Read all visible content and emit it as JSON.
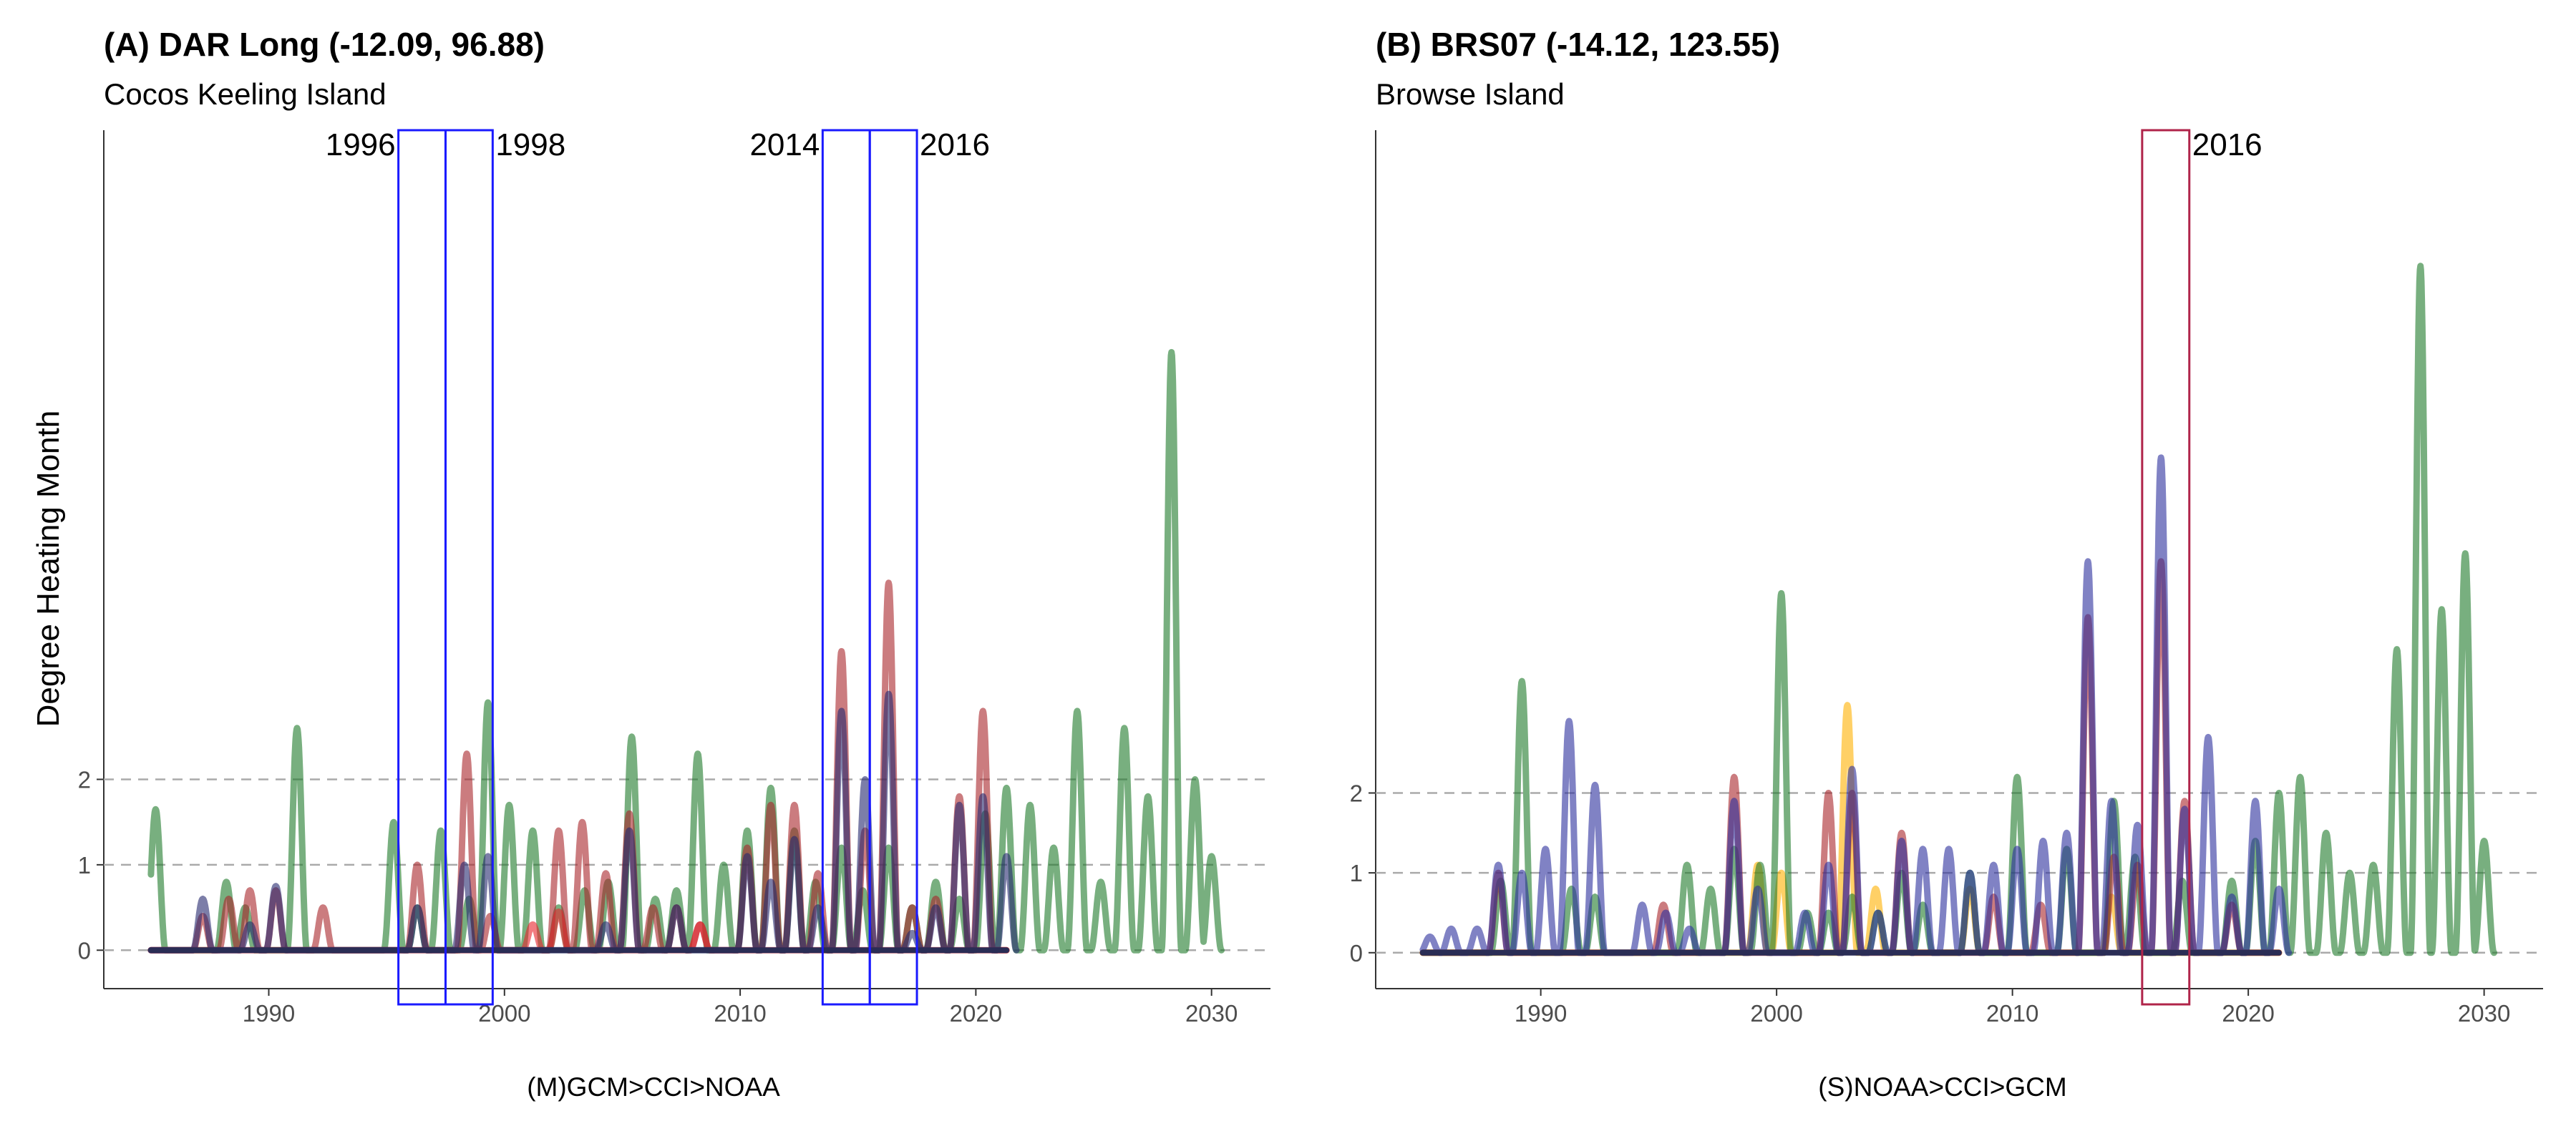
{
  "figure": {
    "ylabel": "Degree Heating Month",
    "panels": [
      {
        "title": "(A) DAR Long (-12.09, 96.88)",
        "subtitle": "Cocos Keeling Island",
        "caption": "(M)GCM>CCI>NOAA",
        "box_color": "#1a1aff",
        "event_boxes": [
          {
            "label": "1996",
            "x0": 1995.5,
            "x1": 1997.5
          },
          {
            "label": "1998",
            "x0": 1997.5,
            "x1": 1999.5
          },
          {
            "label": "2014",
            "x0": 2013.5,
            "x1": 2015.5
          },
          {
            "label": "2016",
            "x0": 2015.5,
            "x1": 2017.5
          }
        ]
      },
      {
        "title": "(B) BRS07 (-14.12, 123.55)",
        "subtitle": "Browse Island",
        "caption": "(S)NOAA>CCI>GCM",
        "box_color": "#b0244a",
        "event_boxes": [
          {
            "label": "2016",
            "x0": 2015.5,
            "x1": 2017.5
          }
        ]
      }
    ]
  },
  "chart_data": [
    {
      "type": "line",
      "title": "(A) DAR Long (-12.09, 96.88)",
      "subtitle": "Cocos Keeling Island",
      "xlabel": "(M)GCM>CCI>NOAA",
      "ylabel": "Degree Heating Month",
      "xlim": [
        1983,
        2032.5
      ],
      "ylim": [
        -0.45,
        9.6
      ],
      "xticks": [
        1990,
        2000,
        2010,
        2020,
        2030
      ],
      "yticks": [
        0,
        1,
        2
      ],
      "hlines": [
        0,
        1,
        2
      ],
      "grid": false,
      "legend": "none",
      "series": [
        {
          "color": "#1e7a2a",
          "peaks": [
            [
              1985.2,
              1.65
            ],
            [
              1988.2,
              0.8
            ],
            [
              1989.0,
              0.5
            ],
            [
              1991.2,
              2.6
            ],
            [
              1995.3,
              1.5
            ],
            [
              1996.3,
              0.5
            ],
            [
              1997.3,
              1.4
            ],
            [
              1998.5,
              0.6
            ],
            [
              1999.3,
              2.9
            ],
            [
              2000.2,
              1.7
            ],
            [
              2001.2,
              1.4
            ],
            [
              2002.3,
              0.5
            ],
            [
              2003.4,
              0.7
            ],
            [
              2004.4,
              0.8
            ],
            [
              2005.4,
              2.5
            ],
            [
              2006.4,
              0.6
            ],
            [
              2007.3,
              0.7
            ],
            [
              2008.2,
              2.3
            ],
            [
              2009.3,
              1.0
            ],
            [
              2010.3,
              1.4
            ],
            [
              2011.3,
              1.9
            ],
            [
              2012.3,
              1.4
            ],
            [
              2013.2,
              0.8
            ],
            [
              2014.3,
              1.2
            ],
            [
              2015.2,
              0.7
            ],
            [
              2016.3,
              1.2
            ],
            [
              2017.3,
              0.5
            ],
            [
              2018.3,
              0.8
            ],
            [
              2019.3,
              0.6
            ],
            [
              2020.4,
              1.6
            ],
            [
              2021.3,
              1.9
            ],
            [
              2022.3,
              1.7
            ],
            [
              2023.3,
              1.2
            ],
            [
              2024.3,
              2.8
            ],
            [
              2025.3,
              0.8
            ],
            [
              2026.3,
              2.6
            ],
            [
              2027.3,
              1.8
            ],
            [
              2028.3,
              7.0
            ],
            [
              2029.3,
              2.0
            ],
            [
              2030.0,
              1.1
            ]
          ]
        },
        {
          "color": "#a8242a",
          "peaks": [
            [
              1987.2,
              0.4
            ],
            [
              1988.3,
              0.6
            ],
            [
              1989.2,
              0.7
            ],
            [
              1990.3,
              0.7
            ],
            [
              1992.3,
              0.5
            ],
            [
              1996.3,
              1.0
            ],
            [
              1998.4,
              2.3
            ],
            [
              1999.4,
              0.4
            ],
            [
              2002.3,
              1.4
            ],
            [
              2003.3,
              1.5
            ],
            [
              2004.3,
              0.9
            ],
            [
              2005.3,
              1.6
            ],
            [
              2006.3,
              0.5
            ],
            [
              2007.3,
              0.5
            ],
            [
              2008.3,
              0.3
            ],
            [
              2010.3,
              1.2
            ],
            [
              2011.3,
              1.7
            ],
            [
              2012.3,
              1.7
            ],
            [
              2013.3,
              0.9
            ],
            [
              2014.3,
              3.5
            ],
            [
              2015.3,
              1.4
            ],
            [
              2016.3,
              4.3
            ],
            [
              2017.3,
              0.5
            ],
            [
              2018.3,
              0.6
            ],
            [
              2019.3,
              1.8
            ],
            [
              2020.3,
              2.8
            ]
          ]
        },
        {
          "color": "#e8232b",
          "peaks": [
            [
              2001.2,
              0.3
            ],
            [
              2002.3,
              0.45
            ],
            [
              2008.3,
              0.3
            ]
          ]
        },
        {
          "color": "#25286e",
          "peaks": [
            [
              1987.2,
              0.6
            ],
            [
              1989.2,
              0.3
            ],
            [
              1990.3,
              0.75
            ],
            [
              1996.3,
              0.5
            ],
            [
              1998.3,
              1.0
            ],
            [
              1999.3,
              1.1
            ],
            [
              2004.3,
              0.3
            ],
            [
              2005.3,
              1.4
            ],
            [
              2007.3,
              0.5
            ],
            [
              2010.3,
              1.1
            ],
            [
              2011.3,
              0.8
            ],
            [
              2012.3,
              1.3
            ],
            [
              2013.3,
              0.5
            ],
            [
              2014.3,
              2.8
            ],
            [
              2015.3,
              2.0
            ],
            [
              2016.3,
              3.0
            ],
            [
              2017.3,
              0.2
            ],
            [
              2018.3,
              0.5
            ],
            [
              2019.3,
              1.7
            ],
            [
              2020.3,
              1.8
            ],
            [
              2021.3,
              1.1
            ]
          ]
        }
      ]
    },
    {
      "type": "line",
      "title": "(B) BRS07 (-14.12, 123.55)",
      "subtitle": "Browse Island",
      "xlabel": "(S)NOAA>CCI>GCM",
      "ylabel": "Degree Heating Month",
      "xlim": [
        1983,
        2032.5
      ],
      "ylim": [
        -0.45,
        10.3
      ],
      "xticks": [
        1990,
        2000,
        2010,
        2020,
        2030
      ],
      "yticks": [
        0,
        1,
        2
      ],
      "hlines": [
        0,
        1,
        2
      ],
      "grid": false,
      "legend": "none",
      "series": [
        {
          "color": "#ffb000",
          "peaks": [
            [
              1999.2,
              1.1
            ],
            [
              2000.2,
              1.0
            ],
            [
              2003.0,
              3.1
            ],
            [
              2004.2,
              0.8
            ],
            [
              2008.2,
              0.8
            ],
            [
              2014.2,
              0.7
            ]
          ]
        },
        {
          "color": "#1e7a2a",
          "peaks": [
            [
              1988.3,
              0.9
            ],
            [
              1989.2,
              3.4
            ],
            [
              1991.3,
              0.8
            ],
            [
              1992.3,
              0.7
            ],
            [
              1996.2,
              1.1
            ],
            [
              1997.2,
              0.8
            ],
            [
              1998.2,
              1.3
            ],
            [
              1999.3,
              1.1
            ],
            [
              2000.2,
              4.5
            ],
            [
              2001.3,
              0.5
            ],
            [
              2002.2,
              0.5
            ],
            [
              2003.2,
              0.7
            ],
            [
              2004.3,
              0.5
            ],
            [
              2005.3,
              1.0
            ],
            [
              2006.2,
              0.6
            ],
            [
              2008.2,
              1.0
            ],
            [
              2010.2,
              2.2
            ],
            [
              2012.3,
              1.3
            ],
            [
              2014.3,
              1.9
            ],
            [
              2015.2,
              1.2
            ],
            [
              2017.2,
              0.9
            ],
            [
              2019.3,
              0.9
            ],
            [
              2020.3,
              1.4
            ],
            [
              2021.3,
              2.0
            ],
            [
              2022.2,
              2.2
            ],
            [
              2023.3,
              1.5
            ],
            [
              2024.3,
              1.0
            ],
            [
              2025.3,
              1.1
            ],
            [
              2026.3,
              3.8
            ],
            [
              2027.3,
              8.6
            ],
            [
              2028.2,
              4.3
            ],
            [
              2029.2,
              5.0
            ],
            [
              2030.0,
              1.4
            ]
          ]
        },
        {
          "color": "#a8242a",
          "peaks": [
            [
              1988.2,
              1.0
            ],
            [
              1995.2,
              0.6
            ],
            [
              1998.2,
              2.2
            ],
            [
              2002.2,
              2.0
            ],
            [
              2003.2,
              2.0
            ],
            [
              2005.3,
              1.5
            ],
            [
              2009.2,
              0.7
            ],
            [
              2011.2,
              0.6
            ],
            [
              2013.2,
              4.2
            ],
            [
              2014.3,
              1.2
            ],
            [
              2015.3,
              1.1
            ],
            [
              2016.3,
              4.9
            ],
            [
              2017.3,
              1.9
            ],
            [
              2019.3,
              0.6
            ]
          ]
        },
        {
          "color": "#2b2f9c",
          "peaks": [
            [
              1985.3,
              0.2
            ],
            [
              1986.2,
              0.3
            ],
            [
              1987.3,
              0.3
            ],
            [
              1988.2,
              1.1
            ],
            [
              1989.2,
              1.0
            ],
            [
              1990.2,
              1.3
            ],
            [
              1991.2,
              2.9
            ],
            [
              1992.3,
              2.1
            ],
            [
              1994.3,
              0.6
            ],
            [
              1995.3,
              0.5
            ],
            [
              1996.3,
              0.3
            ],
            [
              1998.2,
              1.9
            ],
            [
              1999.2,
              0.8
            ],
            [
              2001.2,
              0.5
            ],
            [
              2002.2,
              1.1
            ],
            [
              2003.2,
              2.3
            ],
            [
              2004.3,
              0.5
            ],
            [
              2005.3,
              1.4
            ],
            [
              2006.2,
              1.3
            ],
            [
              2007.3,
              1.3
            ],
            [
              2008.2,
              1.0
            ],
            [
              2009.2,
              1.1
            ],
            [
              2010.2,
              1.3
            ],
            [
              2011.3,
              1.4
            ],
            [
              2012.3,
              1.5
            ],
            [
              2013.2,
              4.9
            ],
            [
              2014.2,
              1.9
            ],
            [
              2015.3,
              1.6
            ],
            [
              2016.3,
              6.2
            ],
            [
              2017.3,
              1.8
            ],
            [
              2018.3,
              2.7
            ],
            [
              2019.3,
              0.7
            ],
            [
              2020.3,
              1.9
            ],
            [
              2021.3,
              0.8
            ]
          ]
        }
      ]
    }
  ]
}
